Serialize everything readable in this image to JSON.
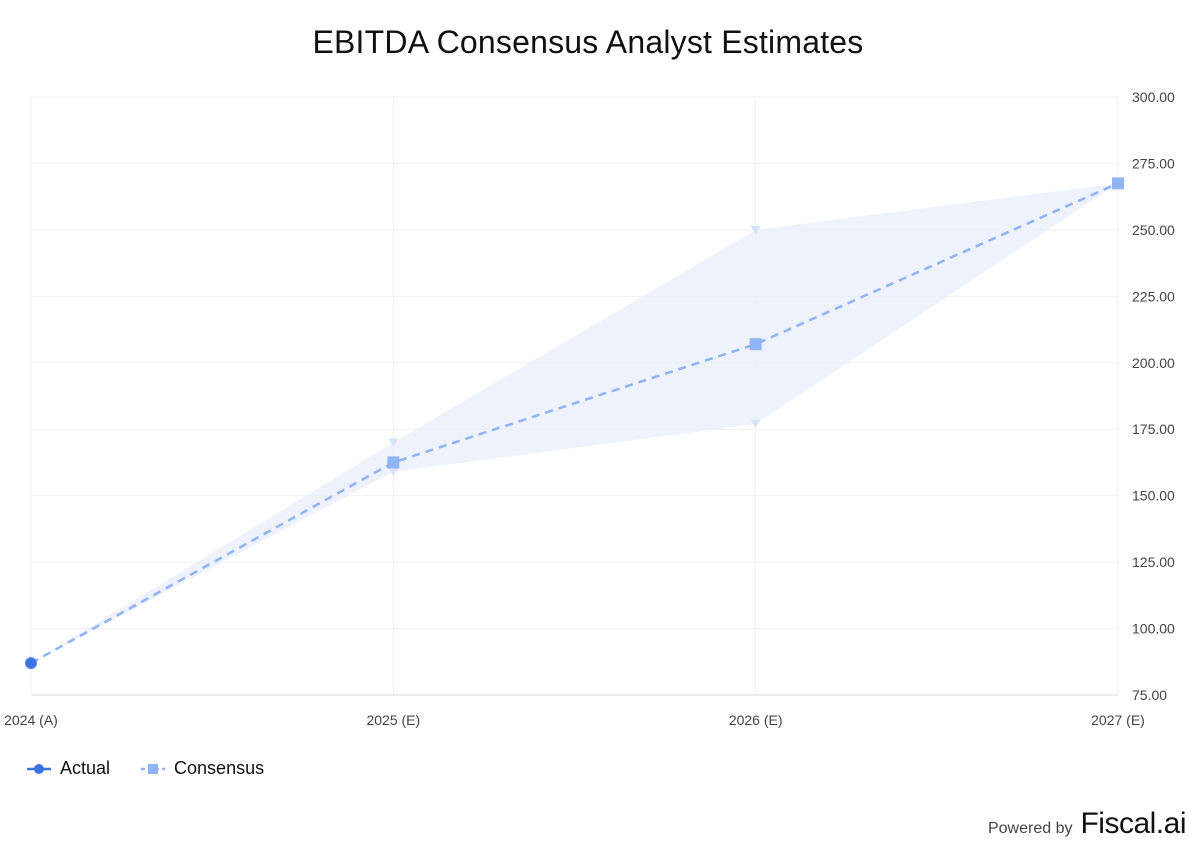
{
  "chart_data": {
    "type": "line",
    "title": "EBITDA Consensus Analyst Estimates",
    "categories": [
      "2024 (A)",
      "2025 (E)",
      "2026 (E)",
      "2027 (E)"
    ],
    "ylim": [
      75,
      300
    ],
    "y_ticks": [
      "300.00",
      "275.00",
      "250.00",
      "225.00",
      "200.00",
      "175.00",
      "150.00",
      "125.00",
      "100.00",
      "75.00"
    ],
    "y_axis_position": "right",
    "grid": true,
    "legend_position": "bottom-left",
    "series": [
      {
        "name": "Actual",
        "marker": "circle",
        "line_style": "solid",
        "color": "#3b73e0",
        "values": [
          87,
          null,
          null,
          null
        ]
      },
      {
        "name": "Consensus",
        "marker": "square",
        "line_style": "dashed",
        "color": "#8fb3f5",
        "values": [
          87,
          162.5,
          207,
          267.5
        ]
      }
    ],
    "range_band": {
      "color": "#e8effc",
      "high": [
        87,
        170,
        250,
        267.5
      ],
      "low": [
        87,
        159,
        177,
        267.5
      ]
    }
  },
  "legend": {
    "actual_label": "Actual",
    "consensus_label": "Consensus"
  },
  "footer": {
    "powered_by": "Powered by",
    "brand": "Fiscal.ai"
  }
}
